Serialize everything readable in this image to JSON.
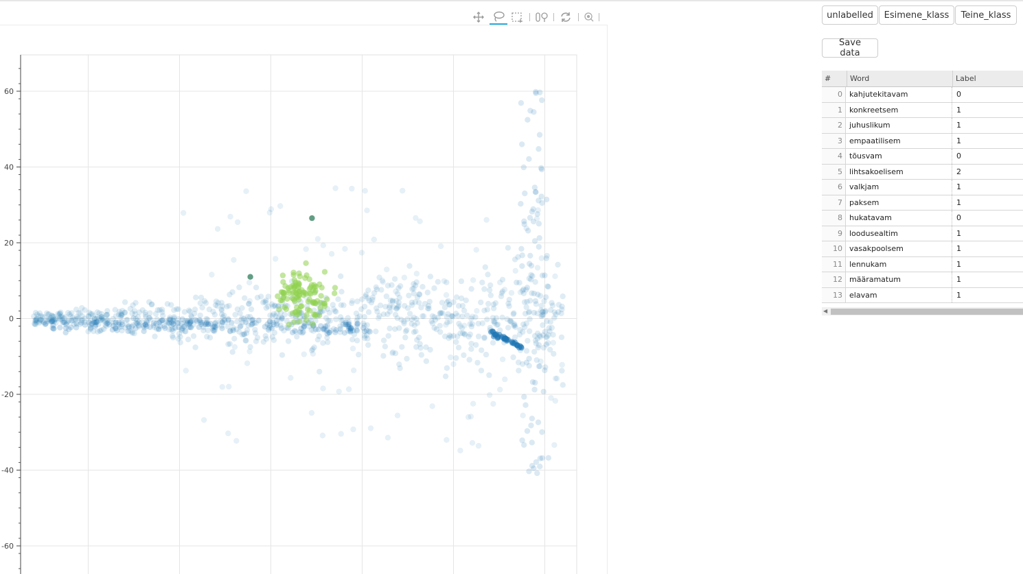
{
  "colors": {
    "unlabelled": "#1f77b4",
    "esimene_klass": "#2e7d5b",
    "teine_klass": "#8fd14f",
    "tool_active": "#26aae1"
  },
  "toolbar": {
    "tools": [
      {
        "name": "pan-icon",
        "active": false
      },
      {
        "name": "lasso-select-icon",
        "active": true
      },
      {
        "name": "box-select-icon",
        "active": false
      },
      {
        "name": "wheel-zoom-icon",
        "active": false
      },
      {
        "name": "reset-icon",
        "active": false
      },
      {
        "name": "hover-icon",
        "active": false
      }
    ]
  },
  "label_buttons": [
    "unlabelled",
    "Esimene_klass",
    "Teine_klass"
  ],
  "save_button": "Save data",
  "table": {
    "columns": [
      "#",
      "Word",
      "Label"
    ],
    "rows": [
      {
        "idx": "0",
        "word": "kahjutekitavam",
        "label": "0"
      },
      {
        "idx": "1",
        "word": "konkreetsem",
        "label": "1"
      },
      {
        "idx": "2",
        "word": "juhuslikum",
        "label": "1"
      },
      {
        "idx": "3",
        "word": "empaatilisem",
        "label": "1"
      },
      {
        "idx": "4",
        "word": "tõusvam",
        "label": "0"
      },
      {
        "idx": "5",
        "word": "lihtsakoelisem",
        "label": "2"
      },
      {
        "idx": "6",
        "word": "valkjam",
        "label": "1"
      },
      {
        "idx": "7",
        "word": "paksem",
        "label": "1"
      },
      {
        "idx": "8",
        "word": "hukatavam",
        "label": "0"
      },
      {
        "idx": "9",
        "word": "loodusealtim",
        "label": "1"
      },
      {
        "idx": "10",
        "word": "vasakpoolsem",
        "label": "1"
      },
      {
        "idx": "11",
        "word": "lennukam",
        "label": "1"
      },
      {
        "idx": "12",
        "word": "määramatum",
        "label": "1"
      },
      {
        "idx": "13",
        "word": "elavam",
        "label": "1"
      }
    ]
  },
  "chart_data": {
    "type": "scatter",
    "title": "",
    "xlabel": "",
    "ylabel": "",
    "ylim": [
      -67,
      70
    ],
    "xlim": [
      -52,
      70
    ],
    "y_ticks": [
      60,
      40,
      20,
      0,
      -20,
      -40,
      -60
    ],
    "x_ticks": [
      -40,
      -20,
      0,
      20,
      40,
      60
    ],
    "x_tick_labels_visible": false,
    "grid": true,
    "series": [
      {
        "color_key": "unlabelled",
        "approx_points": 1100,
        "note_cluster": "wide horizontal band centered at y=0 from x=-50 to x=65, denser ridges near y=-2 and along x=55-62 line sloping downward"
      },
      {
        "color_key": "teine_klass",
        "approx_points": 110,
        "cluster_center": [
          7,
          6
        ],
        "cluster_spread": [
          6,
          7
        ]
      },
      {
        "color_key": "esimene_klass",
        "points": [
          [
            -4.5,
            11
          ],
          [
            9,
            26.5
          ]
        ]
      }
    ]
  }
}
